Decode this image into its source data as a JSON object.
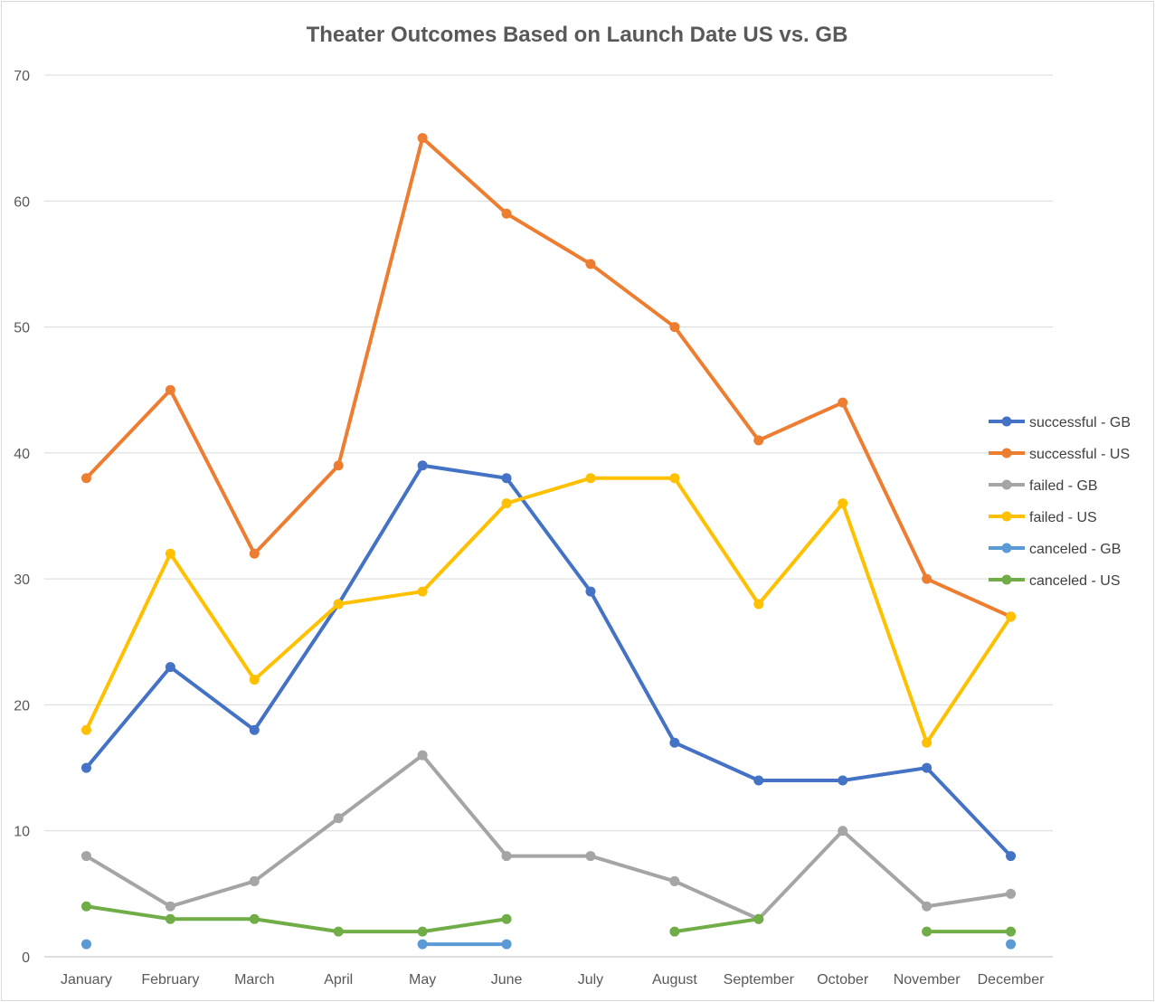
{
  "chart_data": {
    "type": "line",
    "title": "Theater Outcomes Based on Launch Date US vs. GB",
    "xlabel": "",
    "ylabel": "",
    "categories": [
      "January",
      "February",
      "March",
      "April",
      "May",
      "June",
      "July",
      "August",
      "September",
      "October",
      "November",
      "December"
    ],
    "ylim": [
      0,
      70
    ],
    "yticks": [
      0,
      10,
      20,
      30,
      40,
      50,
      60,
      70
    ],
    "grid": true,
    "legend_position": "right",
    "series": [
      {
        "name": "successful - GB",
        "color": "#4472C4",
        "values": [
          15,
          23,
          18,
          28,
          39,
          38,
          29,
          17,
          14,
          14,
          15,
          8
        ]
      },
      {
        "name": "successful - US",
        "color": "#ED7D31",
        "values": [
          38,
          45,
          32,
          39,
          65,
          59,
          55,
          50,
          41,
          44,
          30,
          27
        ]
      },
      {
        "name": "failed - GB",
        "color": "#A5A5A5",
        "values": [
          8,
          4,
          6,
          11,
          16,
          8,
          8,
          6,
          3,
          10,
          4,
          5
        ]
      },
      {
        "name": "failed - US",
        "color": "#FFC000",
        "values": [
          18,
          32,
          22,
          28,
          29,
          36,
          38,
          38,
          28,
          36,
          17,
          27
        ]
      },
      {
        "name": "canceled - GB",
        "color": "#5B9BD5",
        "values": [
          1,
          null,
          null,
          null,
          1,
          1,
          null,
          null,
          null,
          null,
          null,
          1
        ]
      },
      {
        "name": "canceled - US",
        "color": "#70AD47",
        "values": [
          4,
          3,
          3,
          2,
          2,
          3,
          null,
          2,
          3,
          null,
          2,
          2
        ]
      }
    ]
  }
}
